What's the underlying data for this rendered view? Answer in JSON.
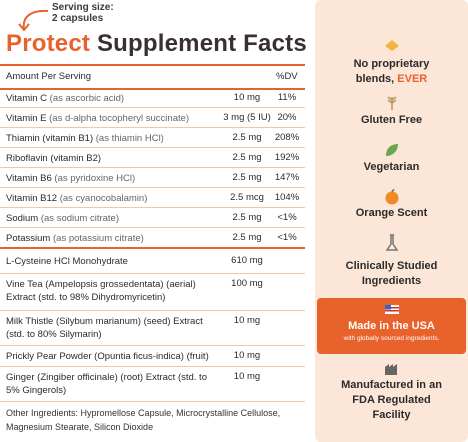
{
  "header": {
    "serving_label": "Serving size:",
    "serving_value": "2 capsules",
    "title_accent": "Protect",
    "title_main": "Supplement Facts"
  },
  "table": {
    "columns": [
      "Amount Per Serving",
      "%DV"
    ],
    "vitamins": [
      {
        "name": "Vitamin C",
        "detail": "(as ascorbic acid)",
        "amount": "10 mg",
        "dv": "11%"
      },
      {
        "name": "Vitamin E",
        "detail": "(as d-alpha tocopheryl succinate)",
        "amount": "3 mg (5 IU)",
        "dv": "20%"
      },
      {
        "name": "Thiamin (vitamin B1)",
        "detail": "(as thiamin HCl)",
        "amount": "2.5 mg",
        "dv": "208%"
      },
      {
        "name": "Riboflavin (vitamin B2)",
        "detail": null,
        "amount": "2.5 mg",
        "dv": "192%"
      },
      {
        "name": "Vitamin B6",
        "detail": "(as pyridoxine HCl)",
        "amount": "2.5 mg",
        "dv": "147%"
      },
      {
        "name": "Vitamin B12",
        "detail": "(as cyanocobalamin)",
        "amount": "2.5 mcg",
        "dv": "104%"
      },
      {
        "name": "Sodium",
        "detail": "(as sodium citrate)",
        "amount": "2.5 mg",
        "dv": "<1%"
      },
      {
        "name": "Potassium",
        "detail": "(as potassium citrate)",
        "amount": "2.5 mg",
        "dv": "<1%"
      }
    ],
    "ingredients": [
      {
        "name": "L-Cysteine HCl Monohydrate",
        "amount": "610 mg"
      },
      {
        "name": "Vine Tea (Ampelopsis grossedentata) (aerial) Extract (std. to 98% Dihydromyricetin)",
        "amount": "100 mg"
      },
      {
        "name": "Milk Thistle (Silybum marianum) (seed) Extract (std. to 80% Silymarin)",
        "amount": "10 mg"
      },
      {
        "name": "Prickly Pear Powder (Opuntia ficus-indica) (fruit)",
        "amount": "10 mg"
      },
      {
        "name": "Ginger (Zingiber officinale) (root) Extract (std. to 5% Gingerols)",
        "amount": "10 mg"
      }
    ]
  },
  "other_ingredients": "Other Ingredients: Hypromellose Capsule, Microcrystalline Cellulose, Magnesium Stearate, Silicon Dioxide",
  "features": {
    "proprietary": {
      "text": "No proprietary blends,",
      "highlight": "EVER"
    },
    "gluten": "Gluten Free",
    "vegetarian": "Vegetarian",
    "orange": "Orange Scent",
    "clinical": "Clinically Studied Ingredients",
    "usa": {
      "title": "Made in the USA",
      "subtitle": "with globally sourced ingredients."
    },
    "fda": "Manufactured in an FDA Regulated Facility"
  }
}
